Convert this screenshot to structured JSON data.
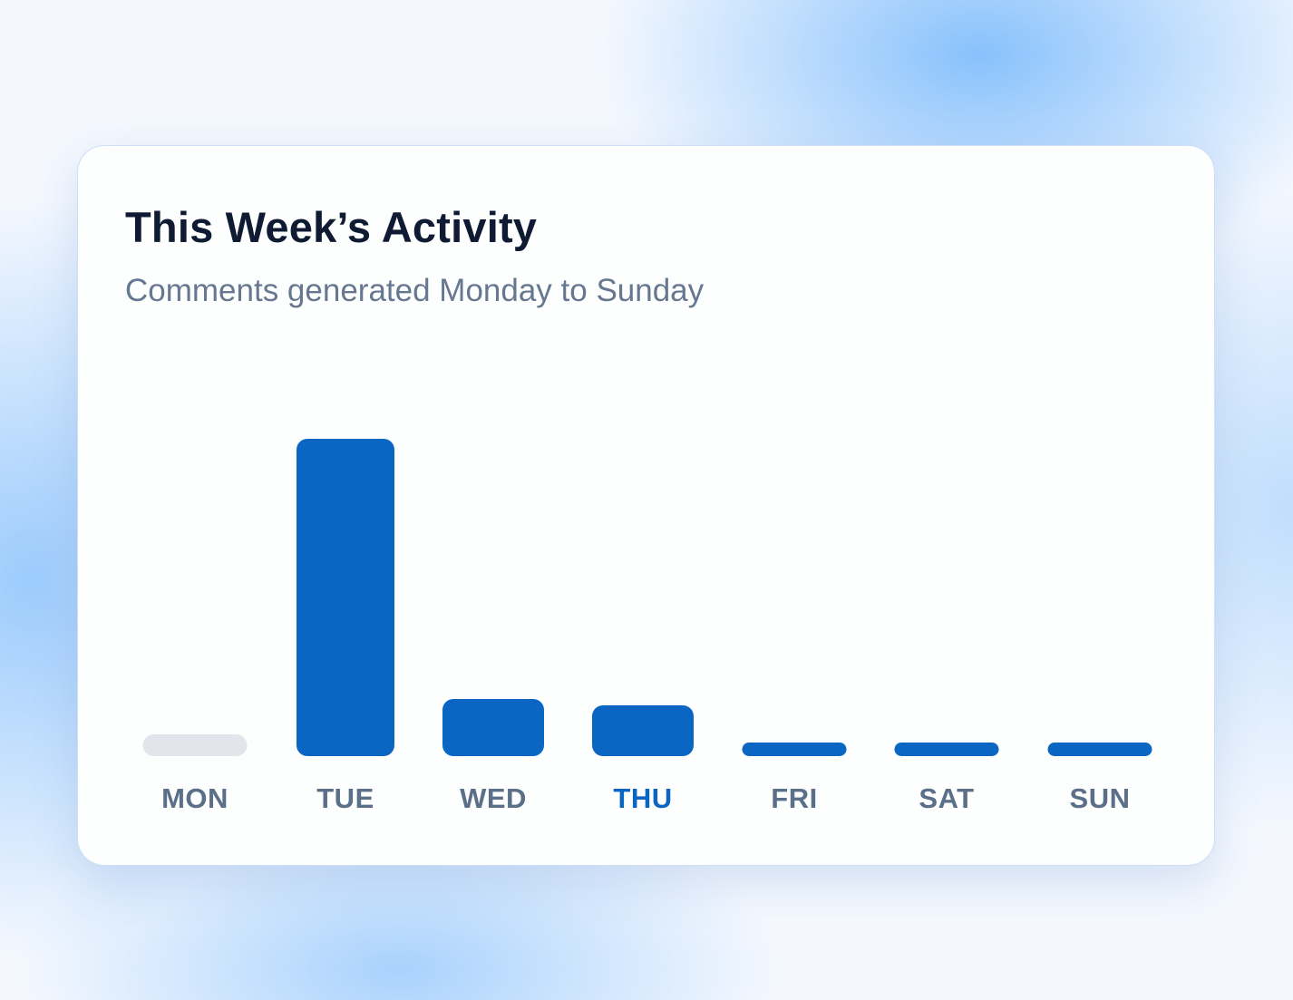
{
  "card": {
    "title": "This Week’s Activity",
    "subtitle": "Comments generated Monday to Sunday"
  },
  "chart_data": {
    "type": "bar",
    "title": "This Week’s Activity",
    "subtitle": "Comments generated Monday to Sunday",
    "categories": [
      "MON",
      "TUE",
      "WED",
      "THU",
      "FRI",
      "SAT",
      "SUN"
    ],
    "values": [
      0,
      100,
      18,
      16,
      4,
      4,
      4
    ],
    "highlighted_category": "THU",
    "xlabel": "",
    "ylabel": "",
    "ylim": [
      0,
      100
    ],
    "grid": false,
    "legend": "none",
    "colors": {
      "bar": "#0b66c3",
      "empty_bar": "#e2e6ec",
      "label": "#5c6f88",
      "highlight_label": "#0b66c3"
    }
  }
}
